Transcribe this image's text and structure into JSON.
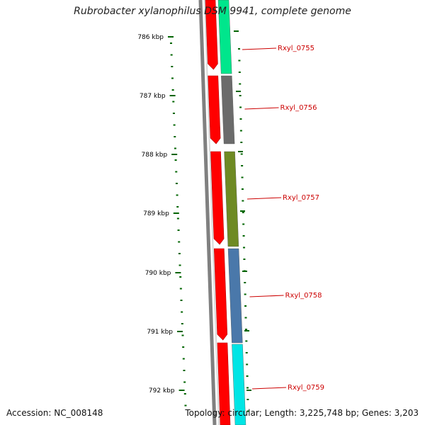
{
  "title": "Rubrobacter xylanophilus DSM 9941, complete genome",
  "footer": {
    "accession": "Accession: NC_008148",
    "topology": "Topology: circular; Length: 3,225,748 bp; Genes: 3,203"
  },
  "colors": {
    "backbone": "#808080",
    "forward_arrow": "#ff0000",
    "tick": "#006400",
    "label": "#cc0000"
  },
  "scale_labels": [
    "786 kbp",
    "787 kbp",
    "788 kbp",
    "789 kbp",
    "790 kbp",
    "791 kbp",
    "792 kbp"
  ],
  "genes": [
    {
      "name": "Rxyl_0755",
      "color": "#00e68c"
    },
    {
      "name": "Rxyl_0756",
      "color": "#6b6b6b"
    },
    {
      "name": "Rxyl_0757",
      "color": "#6e8a23"
    },
    {
      "name": "Rxyl_0758",
      "color": "#4a78aa"
    },
    {
      "name": "Rxyl_0759",
      "color": "#00e5e5"
    }
  ]
}
